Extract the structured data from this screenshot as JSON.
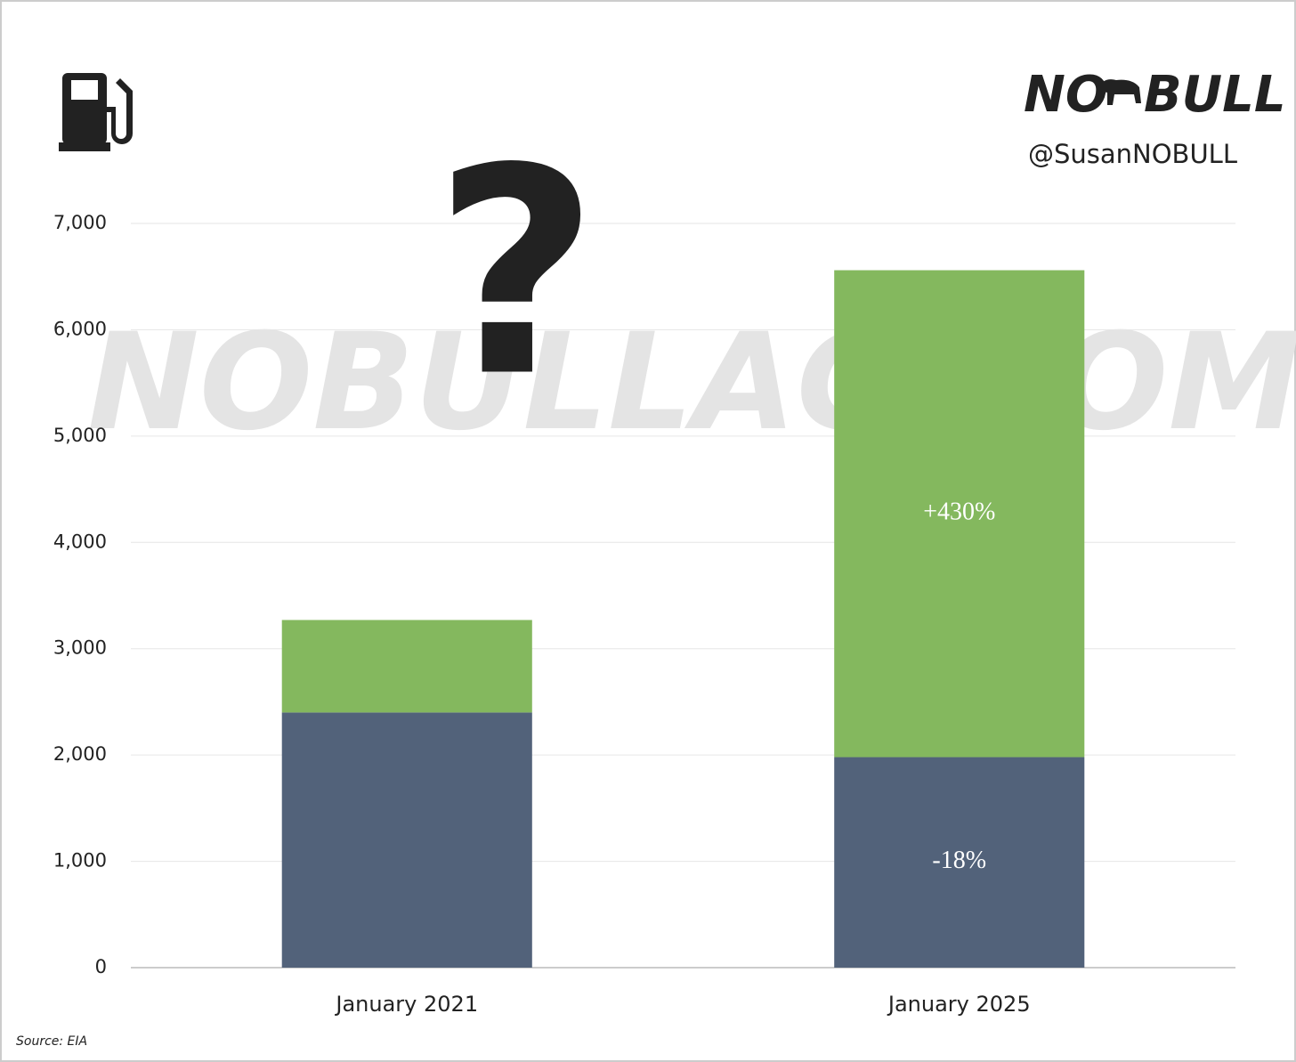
{
  "chart_data": {
    "type": "stacked_bar",
    "categories": [
      "January 2021",
      "January 2025"
    ],
    "series": [
      {
        "color": "#52627a",
        "values": [
          2400,
          1980
        ]
      },
      {
        "color": "#84b85e",
        "values": [
          870,
          4580
        ]
      }
    ],
    "annotations": [
      "+430%",
      "-18%"
    ],
    "ylim": [
      0,
      7000
    ],
    "yticks": [
      0,
      {
        "value": 1000,
        "label": "1,000"
      },
      {
        "value": 2000,
        "label": "2,000"
      },
      {
        "value": 3000,
        "label": "3,000"
      },
      {
        "value": 4000,
        "label": "4,000"
      },
      {
        "value": 5000,
        "label": "5,000"
      },
      {
        "value": 6000,
        "label": "6,000"
      },
      {
        "value": 7000,
        "label": "7,000"
      }
    ],
    "grid": true,
    "question_mark": "?",
    "watermark": "NOBULLAG.COM",
    "logo": [
      "NO",
      "BULL"
    ],
    "handle": "@SusanNOBULL",
    "source": "Source: EIA"
  }
}
